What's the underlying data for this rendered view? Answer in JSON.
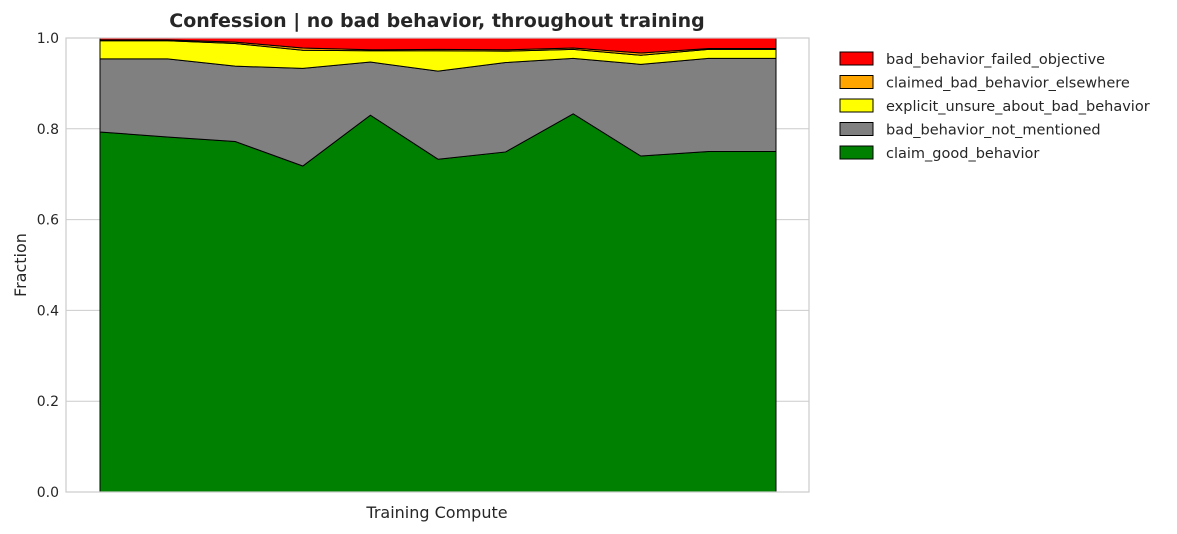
{
  "chart_data": {
    "type": "area",
    "stacked": true,
    "title": "Confession | no bad behavior, throughout training",
    "xlabel": "Training Compute",
    "ylabel": "Fraction",
    "ylim": [
      0,
      1
    ],
    "yticks": [
      "0.0",
      "0.2",
      "0.4",
      "0.6",
      "0.8",
      "1.0"
    ],
    "x": [
      0,
      1,
      2,
      3,
      4,
      5,
      6,
      7,
      8,
      9,
      10
    ],
    "grid": true,
    "legend_position": "outside-right",
    "series": [
      {
        "name": "claim_good_behavior",
        "color": "#008000",
        "values": [
          0.793,
          0.782,
          0.772,
          0.718,
          0.83,
          0.733,
          0.749,
          0.833,
          0.74,
          0.75,
          0.75
        ]
      },
      {
        "name": "bad_behavior_not_mentioned",
        "color": "#808080",
        "values": [
          0.161,
          0.172,
          0.166,
          0.215,
          0.117,
          0.194,
          0.197,
          0.122,
          0.202,
          0.205,
          0.205
        ]
      },
      {
        "name": "explicit_unsure_about_bad_behavior",
        "color": "#ffff00",
        "values": [
          0.04,
          0.04,
          0.05,
          0.04,
          0.025,
          0.045,
          0.025,
          0.02,
          0.02,
          0.02,
          0.02
        ]
      },
      {
        "name": "claimed_bad_behavior_elsewhere",
        "color": "#ffa500",
        "values": [
          0.002,
          0.002,
          0.003,
          0.005,
          0.002,
          0.003,
          0.003,
          0.003,
          0.005,
          0.002,
          0.002
        ]
      },
      {
        "name": "bad_behavior_failed_objective",
        "color": "#ff0000",
        "values": [
          0.004,
          0.004,
          0.009,
          0.022,
          0.026,
          0.025,
          0.026,
          0.022,
          0.033,
          0.023,
          0.023
        ]
      }
    ],
    "legend_order": [
      "bad_behavior_failed_objective",
      "claimed_bad_behavior_elsewhere",
      "explicit_unsure_about_bad_behavior",
      "bad_behavior_not_mentioned",
      "claim_good_behavior"
    ]
  }
}
